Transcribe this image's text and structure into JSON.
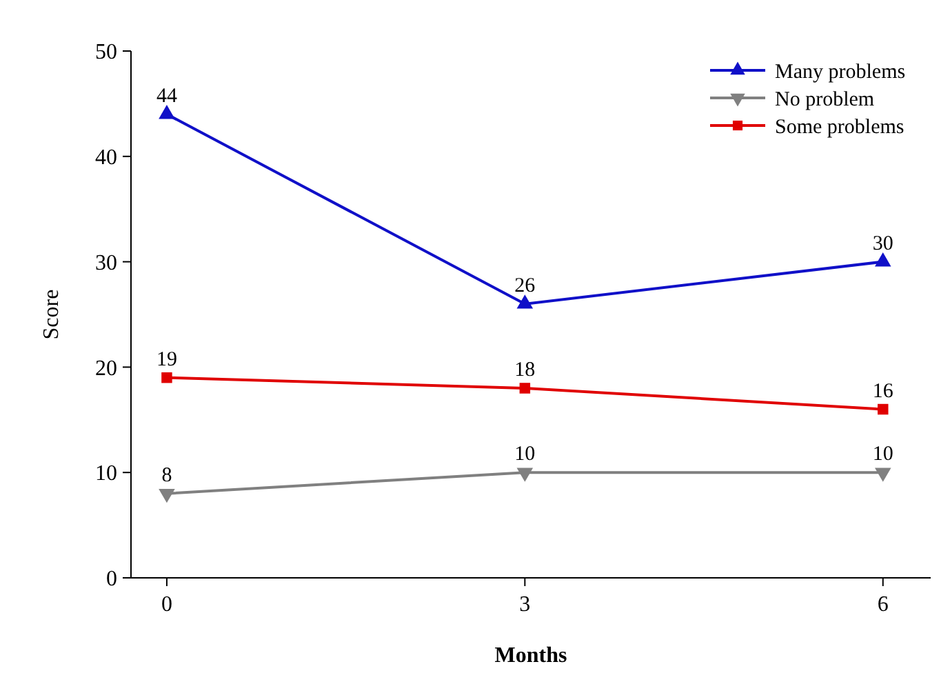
{
  "chart_data": {
    "type": "line",
    "xlabel": "Months",
    "ylabel": "Score",
    "x": [
      0,
      3,
      6
    ],
    "xlim": [
      -0.3,
      6.4
    ],
    "xticks": [
      0,
      3,
      6
    ],
    "ylim": [
      0,
      50
    ],
    "yticks": [
      0,
      10,
      20,
      30,
      40,
      50
    ],
    "grid": false,
    "legend": "top right",
    "data_labels": true,
    "line_style": "solid",
    "series": [
      {
        "name": "Many problems",
        "color": "#1010c8",
        "marker": "triangle",
        "values": [
          44,
          26,
          30
        ]
      },
      {
        "name": "No problem",
        "color": "#808080",
        "marker": "triangle-down",
        "values": [
          8,
          10,
          10
        ]
      },
      {
        "name": "Some problems",
        "color": "#e00000",
        "marker": "square",
        "values": [
          19,
          18,
          16
        ]
      }
    ]
  }
}
